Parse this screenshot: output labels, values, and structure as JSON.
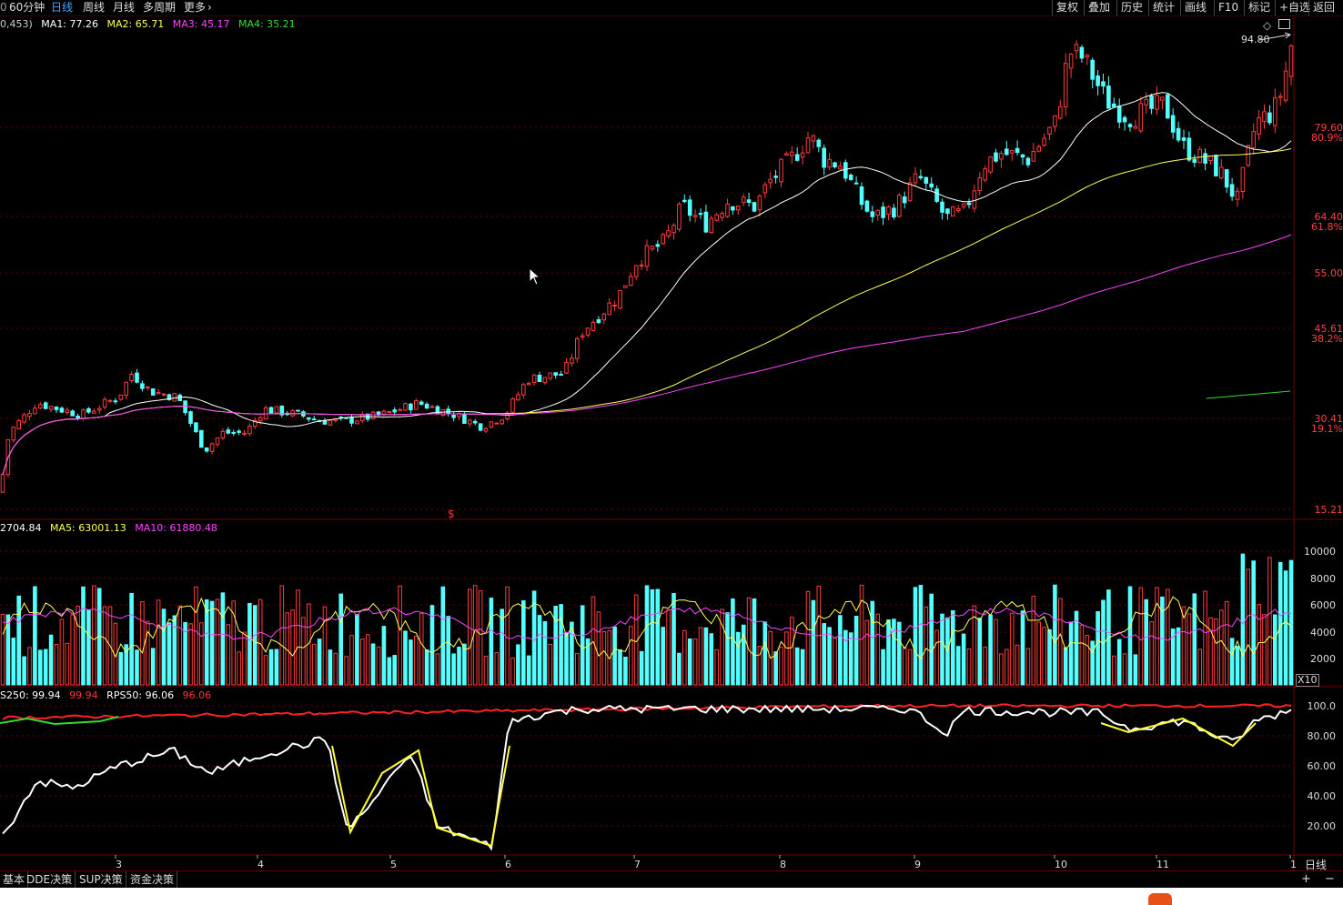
{
  "toolbar": {
    "left_items": [
      {
        "label": "60分钟",
        "active": false
      },
      {
        "label": "日线",
        "active": true
      },
      {
        "label": "周线",
        "active": false
      },
      {
        "label": "月线",
        "active": false
      },
      {
        "label": "多周期",
        "active": false
      },
      {
        "label": "更多",
        "active": false
      }
    ],
    "left_prefix": "0",
    "right_items": [
      "复权",
      "叠加",
      "历史",
      "统计",
      "画线",
      "F10",
      "标记",
      "+自选",
      "返回"
    ]
  },
  "price_panel": {
    "legend_prefix": "0,453)",
    "ma": [
      {
        "label": "MA1: 77.26",
        "color": "#ffffff"
      },
      {
        "label": "MA2: 65.71",
        "color": "#ffff55"
      },
      {
        "label": "MA3: 45.17",
        "color": "#ff44ff"
      },
      {
        "label": "MA4: 35.21",
        "color": "#33dd33"
      }
    ],
    "high_label": "94.80",
    "diamond_icon": "◇",
    "marker_label": "$",
    "axis": [
      {
        "value": "79.60",
        "pct": "80.9%"
      },
      {
        "value": "64.40",
        "pct": "61.8%"
      },
      {
        "value": "55.00",
        "pct": ""
      },
      {
        "value": "45.61",
        "pct": "38.2%"
      },
      {
        "value": "30.41",
        "pct": "19.1%"
      },
      {
        "value": "15.21",
        "pct": ""
      }
    ]
  },
  "volume_panel": {
    "legend": [
      {
        "label": "2704.84",
        "color": "#ffffff"
      },
      {
        "label": "MA5: 63001.13",
        "color": "#ffff55"
      },
      {
        "label": "MA10: 61880.48",
        "color": "#ff44ff"
      }
    ],
    "axis": [
      "10000",
      "8000",
      "6000",
      "4000",
      "2000"
    ],
    "unit": "X10"
  },
  "rps_panel": {
    "legend": [
      {
        "label": "S250: 99.94",
        "color": "#ffffff"
      },
      {
        "label": "99.94",
        "color": "#ff3333"
      },
      {
        "label": "RPS50: 96.06",
        "color": "#ffffff"
      },
      {
        "label": "96.06",
        "color": "#ff3333"
      }
    ],
    "axis": [
      "100.0",
      "80.00",
      "60.00",
      "40.00",
      "20.00"
    ]
  },
  "months": [
    "3",
    "4",
    "5",
    "6",
    "7",
    "8",
    "9",
    "10",
    "11",
    "1"
  ],
  "period_label": "日线",
  "bottom_tabs": [
    "基本",
    "DDE决策",
    "SUP决策",
    "资金决策"
  ],
  "bottom_controls": {
    "plus": "+",
    "minus": "−"
  },
  "colors": {
    "up": "#ff3b3b",
    "down": "#54ffff",
    "ma1": "#ffffff",
    "ma2": "#ffff55",
    "ma3": "#ff44ff",
    "ma4": "#33dd33",
    "grid": "#6a0000",
    "axis_text": "#ff4040"
  },
  "chart_data": {
    "type": "candlestick",
    "x_labels": [
      "3",
      "4",
      "5",
      "6",
      "7",
      "8",
      "9",
      "10",
      "11",
      "1"
    ],
    "y_ticks": [
      15.21,
      30.41,
      45.61,
      55.0,
      64.4,
      79.6
    ],
    "highest": 94.8,
    "ma_values": {
      "MA1": 77.26,
      "MA2": 65.71,
      "MA3": 45.17,
      "MA4": 35.21
    },
    "volume_ma": {
      "MA5": 63001.13,
      "MA10": 61880.48
    },
    "rps": {
      "RPS250": 99.94,
      "RPS50": 96.06
    }
  }
}
